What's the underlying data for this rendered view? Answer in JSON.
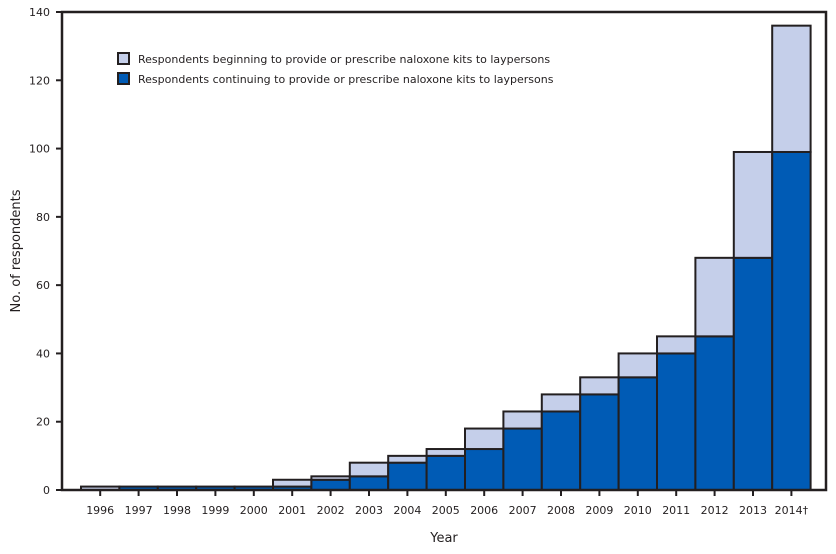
{
  "chart_data": {
    "type": "bar",
    "stacked": true,
    "xlabel": "Year",
    "ylabel": "No. of respondents",
    "ylim": [
      0,
      140
    ],
    "yticks": [
      0,
      20,
      40,
      60,
      80,
      100,
      120,
      140
    ],
    "categories": [
      "1996",
      "1997",
      "1998",
      "1999",
      "2000",
      "2001",
      "2002",
      "2003",
      "2004",
      "2005",
      "2006",
      "2007",
      "2008",
      "2009",
      "2010",
      "2011",
      "2012",
      "2013",
      "2014"
    ],
    "category_labels": [
      "1996",
      "1997",
      "1998",
      "1999",
      "2000",
      "2001",
      "2002",
      "2003",
      "2004",
      "2005",
      "2006",
      "2007",
      "2008",
      "2009",
      "2010",
      "2011",
      "2012",
      "2013",
      "2014†"
    ],
    "series": [
      {
        "name": "Respondents continuing to provide or prescribe naloxone kits to laypersons",
        "color": "#005bb5",
        "values": [
          0,
          1,
          1,
          1,
          1,
          1,
          3,
          4,
          8,
          10,
          12,
          18,
          23,
          28,
          33,
          40,
          45,
          68,
          99
        ]
      },
      {
        "name": "Respondents beginning to provide or prescribe naloxone kits to laypersons",
        "color": "#c5cfea",
        "values": [
          1,
          0,
          0,
          0,
          0,
          2,
          1,
          4,
          2,
          2,
          6,
          5,
          5,
          5,
          7,
          5,
          23,
          31,
          37
        ]
      }
    ],
    "legend_order": [
      1,
      0
    ],
    "legend_placement": "top-left",
    "grid": false,
    "outline_color": "#231f20"
  }
}
